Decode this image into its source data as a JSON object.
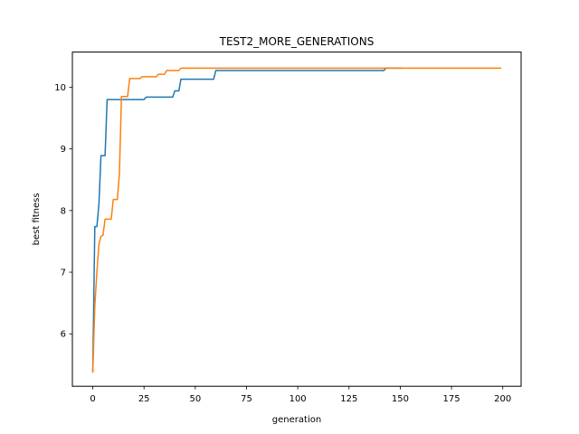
{
  "chart_data": {
    "type": "line",
    "title": "TEST2_MORE_GENERATIONS",
    "xlabel": "generation",
    "ylabel": "best fitness",
    "xlim": [
      -9.95,
      208.95
    ],
    "ylim": [
      5.15,
      10.57
    ],
    "xticks": [
      0,
      25,
      50,
      75,
      100,
      125,
      150,
      175,
      200
    ],
    "yticks": [
      6,
      7,
      8,
      9,
      10
    ],
    "grid": false,
    "series": [
      {
        "color": "#1f77b4",
        "points": [
          [
            0,
            5.4
          ],
          [
            1,
            7.74
          ],
          [
            2,
            7.74
          ],
          [
            3,
            8.1
          ],
          [
            4,
            8.89
          ],
          [
            6,
            8.89
          ],
          [
            7,
            9.8
          ],
          [
            25,
            9.8
          ],
          [
            26,
            9.84
          ],
          [
            39,
            9.84
          ],
          [
            40,
            9.94
          ],
          [
            42,
            9.94
          ],
          [
            43,
            10.13
          ],
          [
            59,
            10.13
          ],
          [
            60,
            10.27
          ],
          [
            142,
            10.27
          ],
          [
            143,
            10.31
          ],
          [
            150,
            10.31
          ]
        ]
      },
      {
        "color": "#ff7f0e",
        "points": [
          [
            0,
            5.38
          ],
          [
            1,
            6.45
          ],
          [
            2,
            7.0
          ],
          [
            3,
            7.45
          ],
          [
            4,
            7.58
          ],
          [
            5,
            7.6
          ],
          [
            6,
            7.86
          ],
          [
            9,
            7.86
          ],
          [
            10,
            8.18
          ],
          [
            12,
            8.18
          ],
          [
            13,
            8.6
          ],
          [
            14,
            9.85
          ],
          [
            17,
            9.85
          ],
          [
            18,
            10.14
          ],
          [
            23,
            10.14
          ],
          [
            24,
            10.17
          ],
          [
            31,
            10.17
          ],
          [
            32,
            10.21
          ],
          [
            35,
            10.21
          ],
          [
            36,
            10.27
          ],
          [
            42,
            10.27
          ],
          [
            43,
            10.31
          ],
          [
            199,
            10.31
          ]
        ]
      }
    ]
  }
}
